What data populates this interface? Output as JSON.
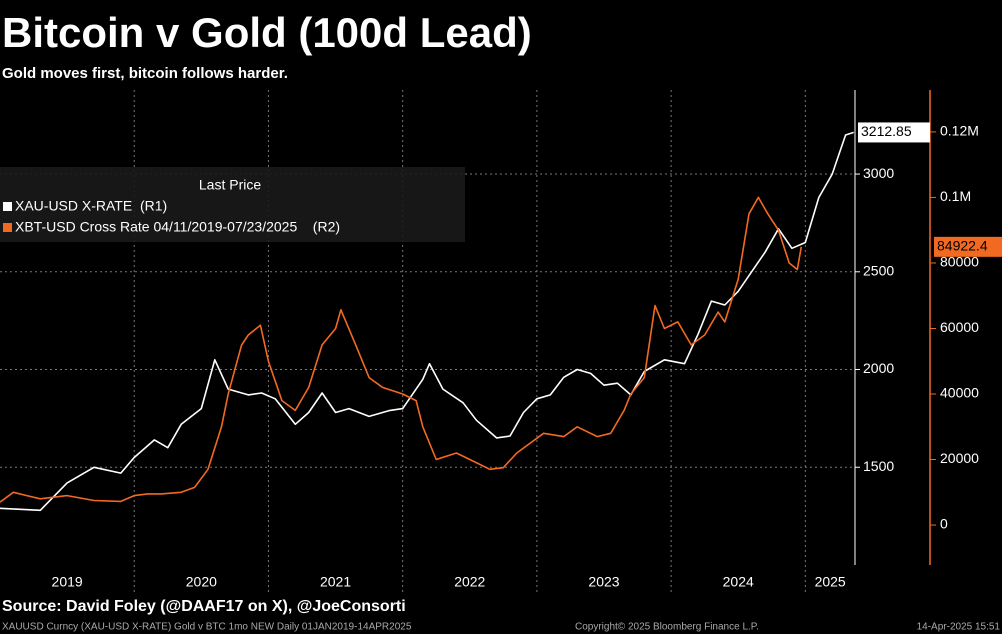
{
  "chart_data": {
    "type": "line",
    "title": "Bitcoin v Gold (100d Lead)",
    "subtitle": "Gold moves first, bitcoin follows harder.",
    "legend_title": "Last Price",
    "source": "Source: David Foley (@DAAF17 on X), @JoeConsorti",
    "footer": "XAUUSD Curncy (XAU-USD X-RATE) Gold v BTC 1mo NEW  Daily 01JAN2019-14APR2025",
    "copyright": "Copyright© 2025 Bloomberg Finance L.P.",
    "timestamp": "14-Apr-2025 15:51",
    "xlim": [
      2019,
      2025.37
    ],
    "xticks": [
      2019,
      2020,
      2021,
      2022,
      2023,
      2024,
      2025
    ],
    "ylim": [
      1000,
      3430
    ],
    "yticks": [
      1500,
      2000,
      2500,
      3000
    ],
    "y2lim": [
      -12200,
      132800
    ],
    "y2ticks": [
      0,
      20000,
      40000,
      60000,
      80000,
      {
        "value": 100000,
        "label": "0.1M"
      },
      {
        "value": 120000,
        "label": "0.12M"
      }
    ],
    "grid": true,
    "legend": "upper left",
    "series": [
      {
        "name": "XAU-USD X-RATE  (R1)",
        "color": "#ffffff",
        "axis": "y",
        "x": [
          2019.0,
          2019.3,
          2019.5,
          2019.7,
          2019.9,
          2020.0,
          2020.15,
          2020.25,
          2020.35,
          2020.5,
          2020.6,
          2020.7,
          2020.85,
          2020.95,
          2021.05,
          2021.2,
          2021.3,
          2021.4,
          2021.5,
          2021.6,
          2021.75,
          2021.9,
          2022.0,
          2022.15,
          2022.2,
          2022.3,
          2022.45,
          2022.55,
          2022.7,
          2022.8,
          2022.9,
          2023.0,
          2023.1,
          2023.2,
          2023.3,
          2023.4,
          2023.5,
          2023.6,
          2023.7,
          2023.8,
          2023.95,
          2024.1,
          2024.2,
          2024.3,
          2024.4,
          2024.5,
          2024.6,
          2024.7,
          2024.8,
          2024.9,
          2025.0,
          2025.1,
          2025.2,
          2025.25,
          2025.3,
          2025.36
        ],
        "values": [
          1290,
          1280,
          1420,
          1500,
          1470,
          1550,
          1640,
          1600,
          1720,
          1800,
          2050,
          1900,
          1870,
          1880,
          1850,
          1720,
          1780,
          1880,
          1780,
          1800,
          1760,
          1790,
          1800,
          1950,
          2030,
          1900,
          1830,
          1740,
          1650,
          1660,
          1780,
          1850,
          1870,
          1960,
          2000,
          1980,
          1920,
          1930,
          1870,
          1990,
          2050,
          2030,
          2180,
          2350,
          2330,
          2400,
          2500,
          2600,
          2720,
          2620,
          2650,
          2880,
          3000,
          3100,
          3200,
          3212.85
        ]
      },
      {
        "name": "XBT-USD Cross Rate 04/11/2019-07/23/2025    (R2)",
        "color": "#f26a22",
        "axis": "y2",
        "x": [
          2019.0,
          2019.1,
          2019.2,
          2019.3,
          2019.5,
          2019.7,
          2019.9,
          2020.0,
          2020.1,
          2020.2,
          2020.35,
          2020.45,
          2020.55,
          2020.65,
          2020.7,
          2020.8,
          2020.85,
          2020.94,
          2021.0,
          2021.1,
          2021.2,
          2021.3,
          2021.4,
          2021.5,
          2021.54,
          2021.65,
          2021.75,
          2021.85,
          2022.0,
          2022.1,
          2022.15,
          2022.25,
          2022.4,
          2022.5,
          2022.65,
          2022.75,
          2022.85,
          2022.95,
          2023.05,
          2023.2,
          2023.3,
          2023.45,
          2023.55,
          2023.65,
          2023.7,
          2023.8,
          2023.88,
          2023.95,
          2024.05,
          2024.15,
          2024.25,
          2024.35,
          2024.4,
          2024.5,
          2024.58,
          2024.65,
          2024.72,
          2024.8,
          2024.88,
          2024.94,
          2024.97
        ],
        "values": [
          7000,
          10000,
          9000,
          8000,
          9000,
          7500,
          7200,
          9000,
          9500,
          9500,
          10000,
          11500,
          17000,
          30000,
          40000,
          55000,
          58000,
          61000,
          50000,
          38000,
          35000,
          42000,
          55000,
          60000,
          65700,
          55000,
          45000,
          42000,
          40000,
          38000,
          30000,
          20000,
          22000,
          20000,
          17000,
          17500,
          22000,
          25000,
          28000,
          27000,
          30000,
          27000,
          28000,
          35000,
          40000,
          45000,
          67000,
          60000,
          62000,
          55000,
          58000,
          65000,
          62000,
          75000,
          95000,
          100000,
          95000,
          90000,
          80000,
          78000,
          84922.4
        ]
      }
    ]
  }
}
